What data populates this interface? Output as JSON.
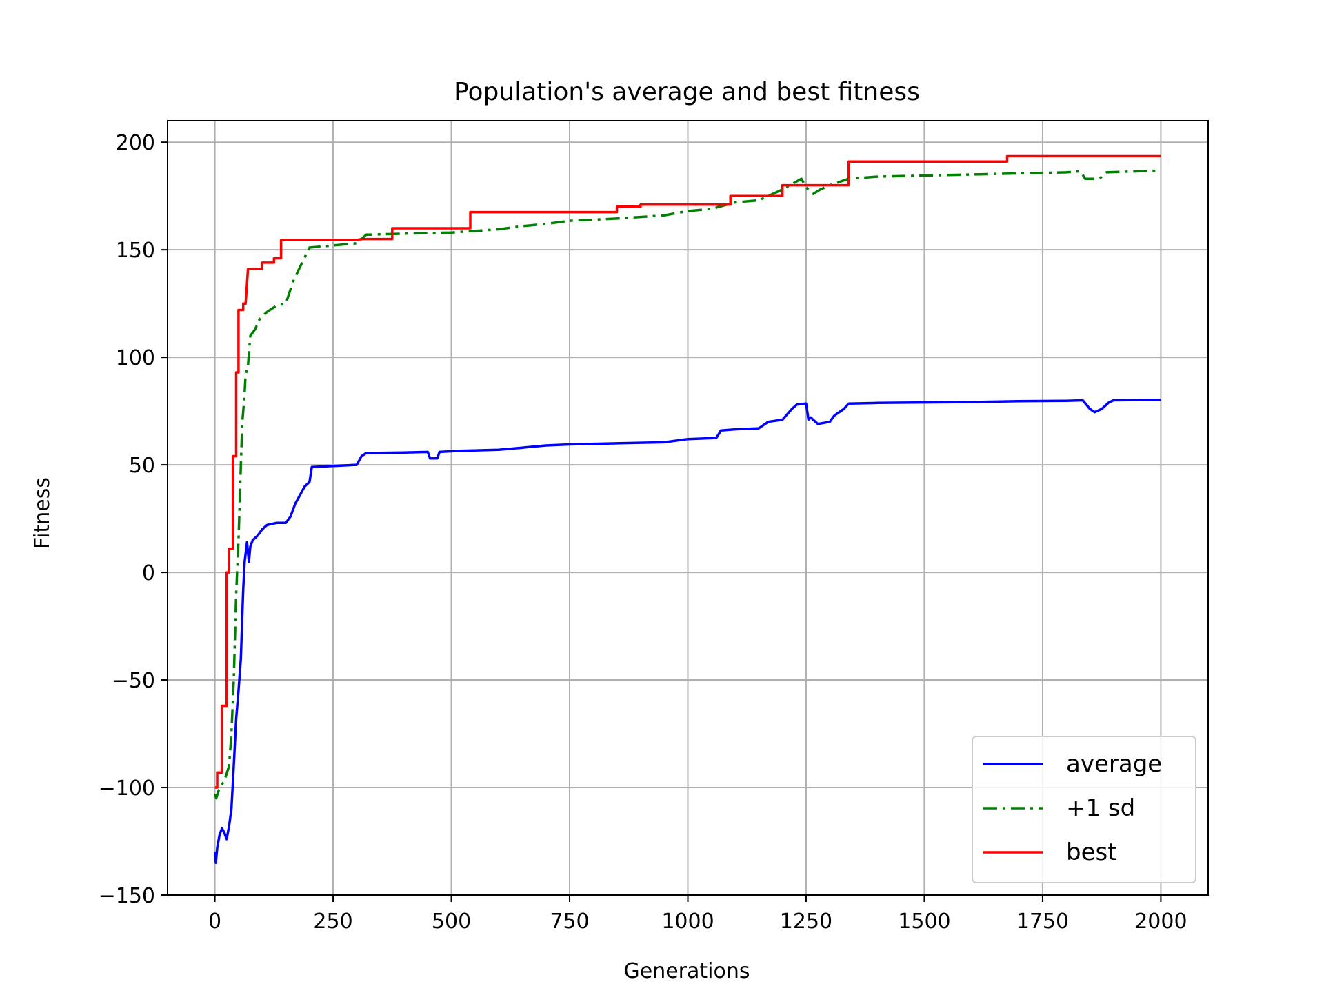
{
  "chart_data": {
    "type": "line",
    "title": "Population's average and best fitness",
    "xlabel": "Generations",
    "ylabel": "Fitness",
    "xlim": [
      -100,
      2100
    ],
    "ylim": [
      -150,
      210
    ],
    "xticks": [
      0,
      250,
      500,
      750,
      1000,
      1250,
      1500,
      1750,
      2000
    ],
    "xtick_labels": [
      "0",
      "250",
      "500",
      "750",
      "1000",
      "1250",
      "1500",
      "1750",
      "2000"
    ],
    "yticks": [
      -150,
      -100,
      -50,
      0,
      50,
      100,
      150,
      200
    ],
    "ytick_labels": [
      "−150",
      "−100",
      "−50",
      "0",
      "50",
      "100",
      "150",
      "200"
    ],
    "grid": true,
    "legend_position": "lower-right",
    "series": [
      {
        "name": "average",
        "color": "#0000ff",
        "style": "solid",
        "points": [
          [
            0,
            -130
          ],
          [
            2,
            -135
          ],
          [
            5,
            -128
          ],
          [
            10,
            -122
          ],
          [
            15,
            -119
          ],
          [
            20,
            -121
          ],
          [
            25,
            -124
          ],
          [
            30,
            -118
          ],
          [
            35,
            -110
          ],
          [
            40,
            -90
          ],
          [
            45,
            -68
          ],
          [
            50,
            -55
          ],
          [
            55,
            -40
          ],
          [
            58,
            -20
          ],
          [
            60,
            -8
          ],
          [
            63,
            5
          ],
          [
            68,
            14
          ],
          [
            72,
            5
          ],
          [
            75,
            12
          ],
          [
            80,
            15
          ],
          [
            90,
            17
          ],
          [
            100,
            20
          ],
          [
            110,
            22
          ],
          [
            130,
            23
          ],
          [
            150,
            23
          ],
          [
            160,
            26
          ],
          [
            170,
            32
          ],
          [
            180,
            36
          ],
          [
            190,
            40
          ],
          [
            200,
            42
          ],
          [
            205,
            49
          ],
          [
            250,
            49.5
          ],
          [
            300,
            50
          ],
          [
            310,
            54
          ],
          [
            320,
            55.5
          ],
          [
            400,
            55.7
          ],
          [
            450,
            56
          ],
          [
            455,
            53
          ],
          [
            470,
            53
          ],
          [
            475,
            56
          ],
          [
            520,
            56.5
          ],
          [
            600,
            57
          ],
          [
            650,
            58
          ],
          [
            700,
            59
          ],
          [
            750,
            59.5
          ],
          [
            850,
            60
          ],
          [
            950,
            60.5
          ],
          [
            1000,
            62
          ],
          [
            1060,
            62.5
          ],
          [
            1070,
            66
          ],
          [
            1100,
            66.5
          ],
          [
            1150,
            67
          ],
          [
            1170,
            70
          ],
          [
            1200,
            71
          ],
          [
            1220,
            76
          ],
          [
            1230,
            78
          ],
          [
            1250,
            78.5
          ],
          [
            1255,
            71
          ],
          [
            1260,
            72
          ],
          [
            1275,
            69
          ],
          [
            1300,
            70
          ],
          [
            1310,
            73
          ],
          [
            1330,
            76
          ],
          [
            1340,
            78.5
          ],
          [
            1400,
            78.8
          ],
          [
            1500,
            79
          ],
          [
            1600,
            79.2
          ],
          [
            1700,
            79.6
          ],
          [
            1800,
            79.8
          ],
          [
            1835,
            80
          ],
          [
            1850,
            76
          ],
          [
            1860,
            74.5
          ],
          [
            1875,
            76
          ],
          [
            1890,
            79
          ],
          [
            1900,
            80
          ],
          [
            2000,
            80.2
          ]
        ]
      },
      {
        "name": "+1 sd",
        "color": "#008000",
        "style": "dashdot",
        "points": [
          [
            0,
            -103
          ],
          [
            3,
            -105
          ],
          [
            10,
            -100
          ],
          [
            20,
            -97
          ],
          [
            30,
            -90
          ],
          [
            35,
            -75
          ],
          [
            40,
            -50
          ],
          [
            45,
            -10
          ],
          [
            50,
            15
          ],
          [
            55,
            50
          ],
          [
            58,
            70
          ],
          [
            62,
            80
          ],
          [
            65,
            92
          ],
          [
            70,
            96
          ],
          [
            75,
            110
          ],
          [
            85,
            113
          ],
          [
            95,
            118
          ],
          [
            110,
            121
          ],
          [
            130,
            124
          ],
          [
            150,
            125
          ],
          [
            165,
            135
          ],
          [
            180,
            142
          ],
          [
            200,
            151
          ],
          [
            250,
            152
          ],
          [
            300,
            153
          ],
          [
            320,
            157
          ],
          [
            400,
            157.5
          ],
          [
            500,
            158
          ],
          [
            600,
            159.5
          ],
          [
            650,
            161
          ],
          [
            700,
            162
          ],
          [
            750,
            163.5
          ],
          [
            850,
            164.5
          ],
          [
            950,
            166
          ],
          [
            1000,
            168
          ],
          [
            1050,
            169
          ],
          [
            1100,
            172
          ],
          [
            1150,
            173
          ],
          [
            1200,
            178
          ],
          [
            1240,
            183
          ],
          [
            1250,
            179
          ],
          [
            1265,
            176
          ],
          [
            1280,
            178
          ],
          [
            1300,
            180
          ],
          [
            1340,
            183
          ],
          [
            1400,
            184
          ],
          [
            1500,
            184.5
          ],
          [
            1600,
            185
          ],
          [
            1700,
            185.5
          ],
          [
            1800,
            186
          ],
          [
            1830,
            186.5
          ],
          [
            1840,
            183
          ],
          [
            1870,
            183
          ],
          [
            1885,
            186
          ],
          [
            2000,
            186.8
          ]
        ]
      },
      {
        "name": "best",
        "color": "#ff0000",
        "style": "solid",
        "points": [
          [
            0,
            -100
          ],
          [
            5,
            -100
          ],
          [
            5,
            -93
          ],
          [
            15,
            -93
          ],
          [
            15,
            -62
          ],
          [
            25,
            -62
          ],
          [
            25,
            0
          ],
          [
            30,
            0
          ],
          [
            30,
            11
          ],
          [
            38,
            11
          ],
          [
            38,
            54
          ],
          [
            45,
            54
          ],
          [
            45,
            93
          ],
          [
            50,
            93
          ],
          [
            50,
            122
          ],
          [
            60,
            122
          ],
          [
            60,
            125
          ],
          [
            65,
            125
          ],
          [
            70,
            141
          ],
          [
            100,
            141
          ],
          [
            100,
            144
          ],
          [
            125,
            144
          ],
          [
            125,
            146
          ],
          [
            140,
            146
          ],
          [
            140,
            154.5
          ],
          [
            300,
            154.5
          ],
          [
            310,
            155
          ],
          [
            375,
            155
          ],
          [
            375,
            160
          ],
          [
            540,
            160
          ],
          [
            540,
            167.5
          ],
          [
            850,
            167.5
          ],
          [
            850,
            170
          ],
          [
            900,
            170
          ],
          [
            900,
            171
          ],
          [
            1090,
            171
          ],
          [
            1090,
            175
          ],
          [
            1200,
            175
          ],
          [
            1200,
            180
          ],
          [
            1340,
            180
          ],
          [
            1340,
            191
          ],
          [
            1675,
            191
          ],
          [
            1675,
            193.5
          ],
          [
            2000,
            193.5
          ]
        ]
      }
    ]
  }
}
